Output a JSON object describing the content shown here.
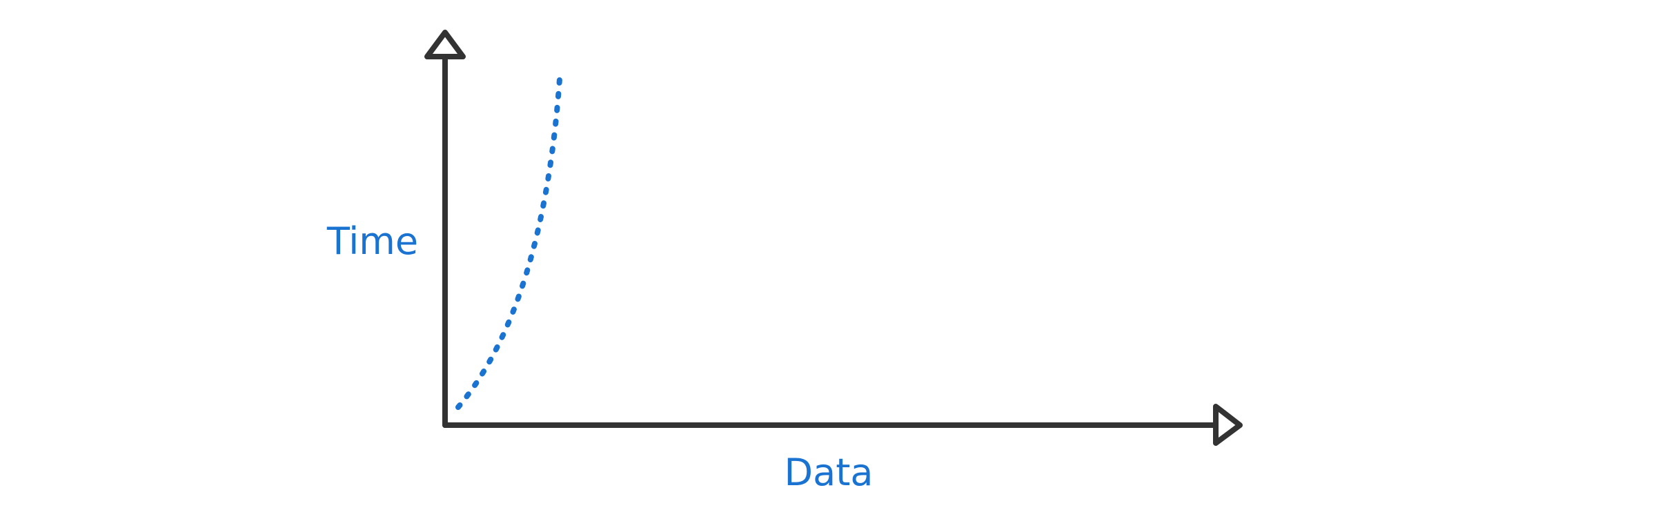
{
  "labels": {
    "y_axis": "Time",
    "x_axis": "Data"
  },
  "colors": {
    "axis": "#333333",
    "curve": "#1a73d1",
    "label": "#1a73d1"
  },
  "curve": {
    "style": "dotted",
    "shape": "exponential"
  }
}
